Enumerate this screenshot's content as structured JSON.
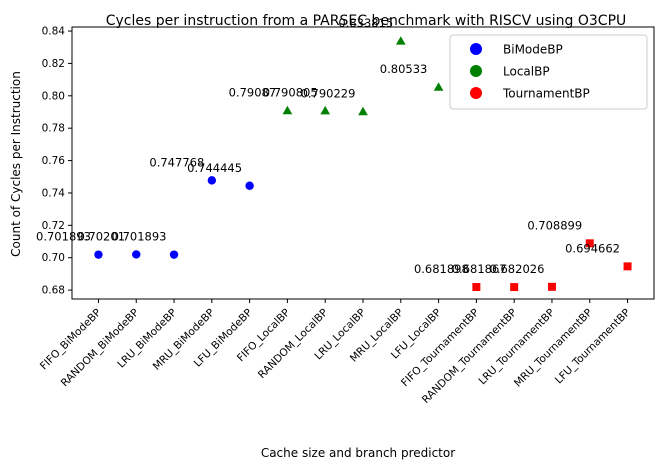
{
  "chart_data": {
    "type": "scatter",
    "title": "Cycles per instruction from a PARSEC benchmark with RISCV using O3CPU",
    "xlabel": "Cache size and branch predictor",
    "ylabel": "Count of Cycles per Instruction",
    "ylim": [
      0.6745,
      0.8425
    ],
    "yticks": [
      0.68,
      0.7,
      0.72,
      0.74,
      0.76,
      0.78,
      0.8,
      0.82,
      0.84
    ],
    "ytick_labels": [
      "0.68",
      "0.70",
      "0.72",
      "0.74",
      "0.76",
      "0.78",
      "0.80",
      "0.82",
      "0.84"
    ],
    "legend_position": "top-right",
    "grid": false,
    "categories": [
      "FIFO_BiModeBP",
      "RANDOM_BiModeBP",
      "LRU_BiModeBP",
      "MRU_BiModeBP",
      "LFU_BiModeBP",
      "FIFO_LocalBP",
      "RANDOM_LocalBP",
      "LRU_LocalBP",
      "MRU_LocalBP",
      "LFU_LocalBP",
      "FIFO_TournamentBP",
      "RANDOM_TournamentBP",
      "LRU_TournamentBP",
      "MRU_TournamentBP",
      "LFU_TournamentBP"
    ],
    "series": [
      {
        "name": "BiModeBP",
        "color": "#0000ff",
        "marker": "circle",
        "x": [
          "FIFO_BiModeBP",
          "RANDOM_BiModeBP",
          "LRU_BiModeBP",
          "MRU_BiModeBP",
          "LFU_BiModeBP"
        ],
        "values": [
          0.701893,
          0.70201,
          0.701893,
          0.747768,
          0.744445
        ],
        "labels": [
          "0.701893",
          "0.70201",
          "0.701893",
          "0.747768",
          "0.744445"
        ]
      },
      {
        "name": "LocalBP",
        "color": "#008000",
        "marker": "triangle",
        "x": [
          "FIFO_LocalBP",
          "RANDOM_LocalBP",
          "LRU_LocalBP",
          "MRU_LocalBP",
          "LFU_LocalBP"
        ],
        "values": [
          0.79087,
          0.790805,
          0.790229,
          0.833815,
          0.80533
        ],
        "labels": [
          "0.79087",
          "0.790805",
          "0.790229",
          "0.833815",
          "0.80533"
        ]
      },
      {
        "name": "TournamentBP",
        "color": "#ff0000",
        "marker": "square",
        "x": [
          "FIFO_TournamentBP",
          "RANDOM_TournamentBP",
          "LRU_TournamentBP",
          "MRU_TournamentBP",
          "LFU_TournamentBP"
        ],
        "values": [
          0.681898,
          0.681867,
          0.682026,
          0.708899,
          0.694662
        ],
        "labels": [
          "0.681898",
          "0.681867",
          "0.682026",
          "0.708899",
          "0.694662"
        ]
      }
    ]
  }
}
